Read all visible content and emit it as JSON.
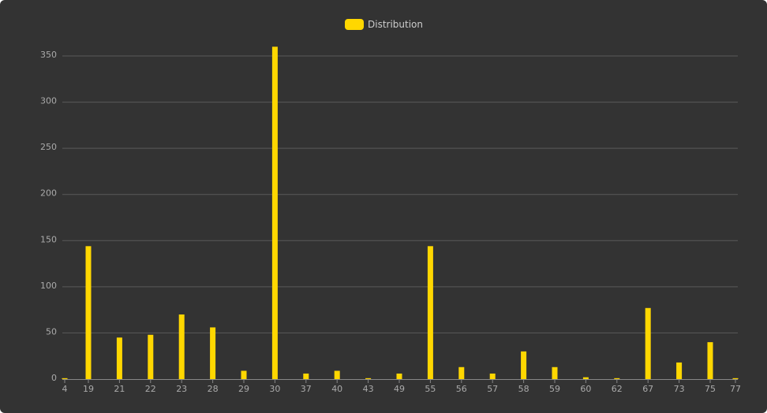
{
  "legend": {
    "series_name": "Distribution",
    "color": "#ffd700"
  },
  "chart_data": {
    "type": "bar",
    "categories": [
      "4",
      "19",
      "21",
      "22",
      "23",
      "28",
      "29",
      "30",
      "37",
      "40",
      "43",
      "49",
      "55",
      "56",
      "57",
      "58",
      "59",
      "60",
      "62",
      "67",
      "73",
      "75",
      "77"
    ],
    "series": [
      {
        "name": "Distribution",
        "values": [
          1,
          144,
          45,
          48,
          70,
          56,
          9,
          360,
          6,
          9,
          1,
          6,
          144,
          13,
          6,
          30,
          13,
          2,
          1,
          77,
          18,
          40,
          1
        ]
      }
    ],
    "yticks": [
      0,
      50,
      100,
      150,
      200,
      250,
      300,
      350
    ],
    "ylim": [
      0,
      360
    ],
    "grid": true,
    "legend_position": "top-center",
    "colors": {
      "background": "#333333",
      "bar": "#ffd700",
      "grid": "#5a5a5a",
      "text": "#aaaaaa"
    }
  }
}
